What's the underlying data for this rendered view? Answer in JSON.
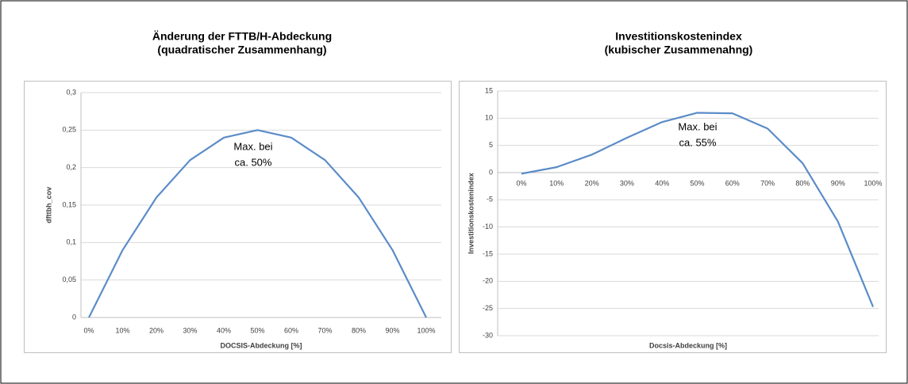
{
  "chart_data": [
    {
      "type": "line",
      "title": "Änderung der FTTB/H-Abdeckung",
      "subtitle": "(quadratischer Zusammenhang)",
      "y_label": "dfttbh_cov",
      "x_label": "DOCSIS-Abdeckung [%]",
      "annotation": [
        "Max. bei",
        "ca. 50%"
      ],
      "categories": [
        "0%",
        "10%",
        "20%",
        "30%",
        "40%",
        "50%",
        "60%",
        "70%",
        "80%",
        "90%",
        "100%"
      ],
      "series": [
        {
          "name": "dfttbh_cov",
          "color": "#5b8cc8",
          "values": [
            0,
            0.09,
            0.16,
            0.21,
            0.24,
            0.25,
            0.24,
            0.21,
            0.16,
            0.09,
            0
          ]
        }
      ],
      "ylim": [
        0,
        0.3
      ],
      "yticks": [
        0,
        {
          "value": 0.05,
          "label": "0,05"
        },
        {
          "value": 0.1,
          "label": "0,1"
        },
        {
          "value": 0.15,
          "label": "0,15"
        },
        {
          "value": 0.2,
          "label": "0,2"
        },
        {
          "value": 0.25,
          "label": "0,25"
        },
        {
          "value": 0.3,
          "label": "0,3"
        }
      ],
      "grid": true
    },
    {
      "type": "line",
      "title": "Investitionskostenindex",
      "subtitle": "(kubischer Zusammenahng)",
      "y_label": "Investitionskostenindex",
      "x_label": "Docsis-Abdeckung [%]",
      "annotation": [
        "Max. bei",
        "ca. 55%"
      ],
      "categories": [
        "0%",
        "10%",
        "20%",
        "30%",
        "40%",
        "50%",
        "60%",
        "70%",
        "80%",
        "90%",
        "100%"
      ],
      "series": [
        {
          "name": "Investitionskostenindex",
          "color": "#5b8cc8",
          "values": [
            -0.2,
            1.0,
            3.3,
            6.4,
            9.3,
            11,
            10.9,
            8.1,
            1.7,
            -9,
            -24.7
          ]
        }
      ],
      "ylim": [
        -30,
        15
      ],
      "yticks": [
        -30,
        -25,
        -20,
        -15,
        -10,
        -5,
        0,
        5,
        10,
        15
      ],
      "grid": true
    }
  ]
}
